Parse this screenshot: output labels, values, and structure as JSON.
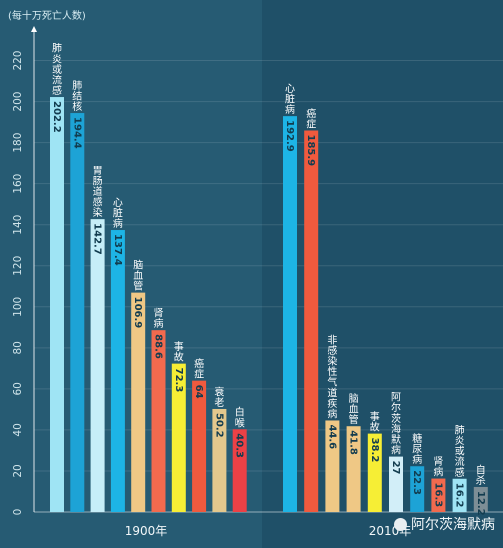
{
  "chart_data": {
    "type": "bar",
    "ylabel": "(每十万死亡人数)",
    "ylim": [
      0,
      230
    ],
    "yticks": [
      0,
      20,
      40,
      60,
      80,
      100,
      120,
      140,
      160,
      180,
      200,
      220
    ],
    "grid": true,
    "panels": [
      {
        "name": "1900年",
        "background": "#265b73",
        "bars": [
          {
            "label": "肺炎或流感",
            "value": 202.2,
            "color": "#9fe4f4"
          },
          {
            "label": "肺结核",
            "value": 194.4,
            "color": "#1da3d6"
          },
          {
            "label": "胃肠道感染",
            "value": 142.7,
            "color": "#c6eef8"
          },
          {
            "label": "心脏病",
            "value": 137.4,
            "color": "#1db4e6"
          },
          {
            "label": "脑血管",
            "value": 106.9,
            "color": "#efc885"
          },
          {
            "label": "肾病",
            "value": 88.6,
            "color": "#f26a4e"
          },
          {
            "label": "事故",
            "value": 72.3,
            "color": "#f6ee35"
          },
          {
            "label": "癌症",
            "value": 64.0,
            "color": "#f05a3e"
          },
          {
            "label": "衰老",
            "value": 50.2,
            "color": "#e3c88d"
          },
          {
            "label": "白喉",
            "value": 40.3,
            "color": "#ec4146"
          }
        ]
      },
      {
        "name": "2010年",
        "background": "#1f5068",
        "bars": [
          {
            "label": "心脏病",
            "value": 192.9,
            "color": "#1db4e6"
          },
          {
            "label": "癌症",
            "value": 185.9,
            "color": "#f05a3e"
          },
          {
            "label": "非感染性气道疾病",
            "value": 44.6,
            "color": "#efc885"
          },
          {
            "label": "脑血管",
            "value": 41.8,
            "color": "#efc885"
          },
          {
            "label": "事故",
            "value": 38.2,
            "color": "#f6ee35"
          },
          {
            "label": "阿尔茨海默病",
            "value": 27.0,
            "color": "#d2eef8"
          },
          {
            "label": "糖尿病",
            "value": 22.3,
            "color": "#1da3d6"
          },
          {
            "label": "肾病",
            "value": 16.3,
            "color": "#f26a4e"
          },
          {
            "label": "肺炎或流感",
            "value": 16.2,
            "color": "#9fe4f4"
          },
          {
            "label": "自杀",
            "value": 12.2,
            "color": "#7d8e96"
          }
        ]
      }
    ]
  },
  "watermark": "阿尔茨海默病"
}
